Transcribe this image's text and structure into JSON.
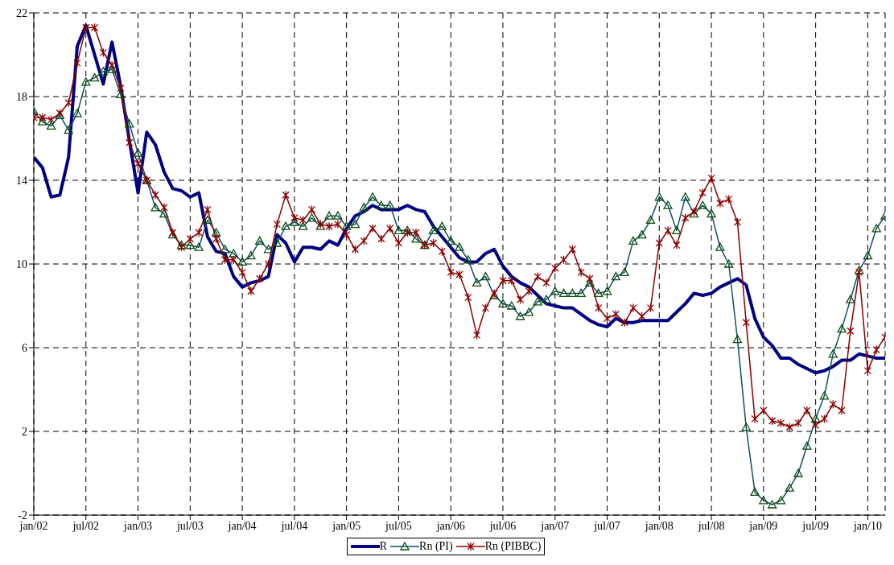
{
  "chart_data": {
    "type": "line",
    "categories": [
      "jan/02",
      null,
      null,
      null,
      null,
      null,
      "jul/02",
      null,
      null,
      null,
      null,
      null,
      "jan/03",
      null,
      null,
      null,
      null,
      null,
      "jul/03",
      null,
      null,
      null,
      null,
      null,
      "jan/04",
      null,
      null,
      null,
      null,
      null,
      "jul/04",
      null,
      null,
      null,
      null,
      null,
      "jan/05",
      null,
      null,
      null,
      null,
      null,
      "jul/05",
      null,
      null,
      null,
      null,
      null,
      "jan/06",
      null,
      null,
      null,
      null,
      null,
      "jul/06",
      null,
      null,
      null,
      null,
      null,
      "jan/07",
      null,
      null,
      null,
      null,
      null,
      "jul/07",
      null,
      null,
      null,
      null,
      null,
      "jan/08",
      null,
      null,
      null,
      null,
      null,
      "jul/08",
      null,
      null,
      null,
      null,
      null,
      "jan/09",
      null,
      null,
      null,
      null,
      null,
      "jul/09",
      null,
      null,
      null,
      null,
      null,
      "jan/10",
      null,
      null
    ],
    "series": [
      {
        "name": "R",
        "color": "#000080",
        "marker": "none",
        "values": [
          15.1,
          14.6,
          13.2,
          13.3,
          15.1,
          20.4,
          21.4,
          20.0,
          18.6,
          20.6,
          18.5,
          15.9,
          13.4,
          16.3,
          15.7,
          14.4,
          13.6,
          13.5,
          13.2,
          13.4,
          11.3,
          10.6,
          10.5,
          9.4,
          8.9,
          9.1,
          9.2,
          9.4,
          11.4,
          11.0,
          10.1,
          10.8,
          10.8,
          10.7,
          11.1,
          10.9,
          11.7,
          12.3,
          12.5,
          12.8,
          12.6,
          12.6,
          12.6,
          12.8,
          12.6,
          12.5,
          11.8,
          11.3,
          10.8,
          10.3,
          10.1,
          10.1,
          10.5,
          10.7,
          9.9,
          9.4,
          9.1,
          8.9,
          8.5,
          8.1,
          8.0,
          7.9,
          7.9,
          7.6,
          7.3,
          7.1,
          7.0,
          7.4,
          7.2,
          7.2,
          7.3,
          7.3,
          7.3,
          7.3,
          7.7,
          8.1,
          8.6,
          8.5,
          8.6,
          8.9,
          9.1,
          9.3,
          9.0,
          7.4,
          6.5,
          6.1,
          5.5,
          5.5,
          5.2,
          5.0,
          4.8,
          4.9,
          5.1,
          5.4,
          5.4,
          5.7,
          5.6,
          5.5,
          5.5
        ]
      },
      {
        "name": "Rn (PI)",
        "color": "#0e4f6e",
        "marker": "triangle",
        "values": [
          17.3,
          16.8,
          16.6,
          17.1,
          16.4,
          17.2,
          18.7,
          18.9,
          19.2,
          19.3,
          18.1,
          16.7,
          15.3,
          14.0,
          12.7,
          12.4,
          11.4,
          10.9,
          10.9,
          10.8,
          12.1,
          11.5,
          10.7,
          10.5,
          10.1,
          10.4,
          11.1,
          10.7,
          11.0,
          11.8,
          12.0,
          11.8,
          12.2,
          11.8,
          12.3,
          12.3,
          11.8,
          11.9,
          12.7,
          13.2,
          12.8,
          12.8,
          11.6,
          11.6,
          11.2,
          10.9,
          11.6,
          11.8,
          11.1,
          10.8,
          10.2,
          9.1,
          9.4,
          8.5,
          8.1,
          8.0,
          7.5,
          7.7,
          8.2,
          8.3,
          8.7,
          8.6,
          8.6,
          8.6,
          9.1,
          8.6,
          8.7,
          9.4,
          9.6,
          11.1,
          11.4,
          12.1,
          13.2,
          12.8,
          11.6,
          13.2,
          12.4,
          12.8,
          12.4,
          10.8,
          10.0,
          6.4,
          2.2,
          -0.9,
          -1.3,
          -1.5,
          -1.3,
          -0.7,
          0.0,
          1.3,
          2.6,
          3.7,
          5.7,
          6.9,
          8.3,
          9.7,
          10.4,
          11.7,
          12.3
        ]
      },
      {
        "name": "Rn (PIBBC)",
        "color": "#8b0000",
        "marker": "cross",
        "values": [
          17.0,
          17.0,
          16.9,
          17.2,
          17.7,
          19.6,
          21.3,
          21.3,
          20.1,
          19.5,
          18.4,
          15.8,
          14.8,
          14.0,
          13.3,
          12.7,
          11.5,
          10.8,
          11.2,
          11.5,
          12.6,
          11.2,
          10.2,
          10.2,
          9.6,
          8.7,
          9.3,
          10.0,
          11.9,
          13.3,
          12.2,
          12.1,
          12.6,
          11.9,
          11.8,
          11.9,
          11.4,
          10.7,
          11.1,
          11.7,
          11.2,
          11.7,
          11.0,
          11.5,
          11.5,
          10.9,
          11.0,
          10.6,
          9.6,
          9.5,
          8.4,
          6.6,
          7.9,
          8.6,
          9.2,
          9.2,
          8.3,
          8.7,
          9.4,
          9.1,
          9.8,
          10.2,
          10.7,
          9.6,
          9.3,
          7.9,
          7.4,
          7.6,
          7.2,
          7.9,
          7.5,
          7.9,
          11.0,
          11.6,
          10.9,
          12.2,
          12.5,
          13.4,
          14.1,
          12.9,
          13.1,
          12.0,
          7.2,
          2.6,
          3.0,
          2.5,
          2.4,
          2.2,
          2.4,
          3.0,
          2.3,
          2.6,
          3.3,
          3.0,
          6.8,
          9.6,
          4.9,
          5.9,
          6.5
        ]
      }
    ],
    "ylim": [
      -2,
      22
    ],
    "yticks": [
      -2,
      2,
      6,
      10,
      14,
      18,
      22
    ],
    "grid": true,
    "legend": "bottom"
  }
}
